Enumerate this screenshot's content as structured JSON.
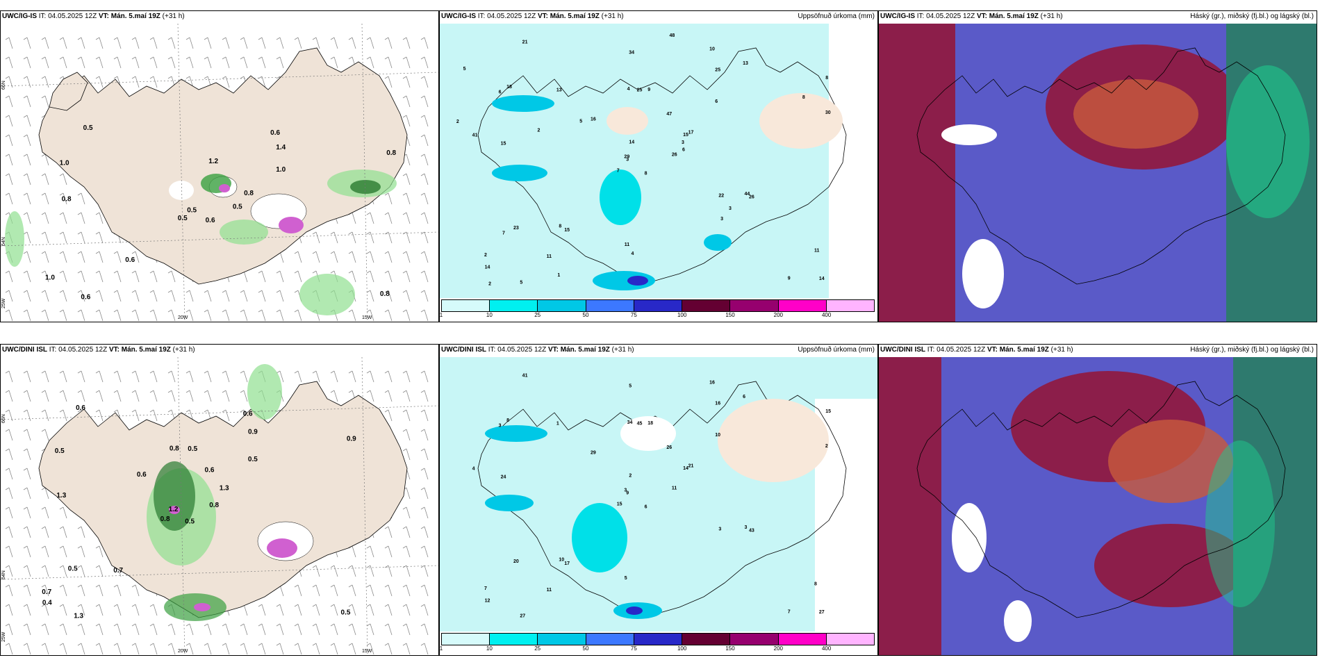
{
  "panels": [
    {
      "id": "p1",
      "model": "UWC/IG-IS",
      "it": "IT: 04.05.2025 12Z",
      "vt": "VT: Mán. 5.maí 19Z",
      "lead": "(+31 h)",
      "right": ""
    },
    {
      "id": "p2",
      "model": "UWC/IG-IS",
      "it": "IT: 04.05.2025 12Z",
      "vt": "VT: Mán. 5.maí 19Z",
      "lead": "(+31 h)",
      "right": "Uppsöfnuð úrkoma (mm)"
    },
    {
      "id": "p3",
      "model": "UWC/IG-IS",
      "it": "IT: 04.05.2025 12Z",
      "vt": "VT: Mán. 5.maí 19Z",
      "lead": "(+31 h)",
      "right": "Háský (gr.), miðský (fj.bl.) og lágský (bl.)"
    },
    {
      "id": "p4",
      "model": "UWC/DINI ISL",
      "it": "IT: 04.05.2025 12Z",
      "vt": "VT: Mán. 5.maí 19Z",
      "lead": "(+31 h)",
      "right": ""
    },
    {
      "id": "p5",
      "model": "UWC/DINI ISL",
      "it": "IT: 04.05.2025 12Z",
      "vt": "VT: Mán. 5.maí 19Z",
      "lead": "(+31 h)",
      "right": "Uppsöfnuð úrkoma (mm)"
    },
    {
      "id": "p6",
      "model": "UWC/DINI ISL",
      "it": "IT: 04.05.2025 12Z",
      "vt": "VT: Mán. 5.maí 19Z",
      "lead": "(+31 h)",
      "right": "Háský (gr.), miðský (fj.bl.) og lágský (bl.)"
    }
  ],
  "axis_labels": {
    "lat66": "66N",
    "lat64": "64N",
    "lon20": "20W",
    "lon15": "15W",
    "lat25": "25W"
  },
  "colorbar": {
    "ticks": [
      "1",
      "10",
      "25",
      "50",
      "75",
      "100",
      "150",
      "200",
      "400"
    ],
    "colors": [
      "#d6fbfb",
      "#00f0f0",
      "#00c8e6",
      "#3c78ff",
      "#2828c8",
      "#640032",
      "#96006e",
      "#ff00c8",
      "#ffb4ff"
    ]
  },
  "p1_labels": [
    "0.6",
    "1.0",
    "0.5",
    "1.0",
    "0.8",
    "0.6",
    "0.6",
    "1.2",
    "1.4",
    "0.5",
    "0.5",
    "0.8",
    "0.8",
    "0.8",
    "0.5",
    "1.0",
    "0.6"
  ],
  "p4_labels": [
    "0.5",
    "0.5",
    "1.2",
    "0.7",
    "1.3",
    "0.7",
    "0.6",
    "0.5",
    "0.9",
    "0.8",
    "0.6",
    "0.5",
    "1.3",
    "0.9",
    "0.8",
    "0.5",
    "1.3",
    "0.8",
    "0.6",
    "0.5",
    "0.6",
    "0.4"
  ],
  "p2_numbers": [
    "8",
    "6",
    "3",
    "2",
    "15",
    "15",
    "10",
    "9",
    "25",
    "26",
    "21",
    "14",
    "15",
    "8",
    "7",
    "6",
    "5",
    "4",
    "47",
    "23",
    "16",
    "14",
    "11",
    "25",
    "17",
    "26",
    "18",
    "34",
    "41",
    "22",
    "30",
    "29",
    "11",
    "14",
    "13",
    "13",
    "8",
    "9",
    "11",
    "44",
    "48",
    "5",
    "2",
    "3",
    "1",
    "2",
    "3",
    "2",
    "4",
    "6",
    "7",
    "8",
    "5",
    "3"
  ],
  "p5_numbers": [
    "6",
    "3",
    "9",
    "7",
    "14",
    "17",
    "16",
    "18",
    "16",
    "11",
    "41",
    "27",
    "24",
    "15",
    "15",
    "10",
    "27",
    "34",
    "26",
    "20",
    "29",
    "12",
    "11",
    "45",
    "21",
    "43",
    "8",
    "5",
    "4",
    "3",
    "2",
    "3",
    "5",
    "2",
    "1",
    "6",
    "10",
    "7",
    "8",
    "3"
  ]
}
